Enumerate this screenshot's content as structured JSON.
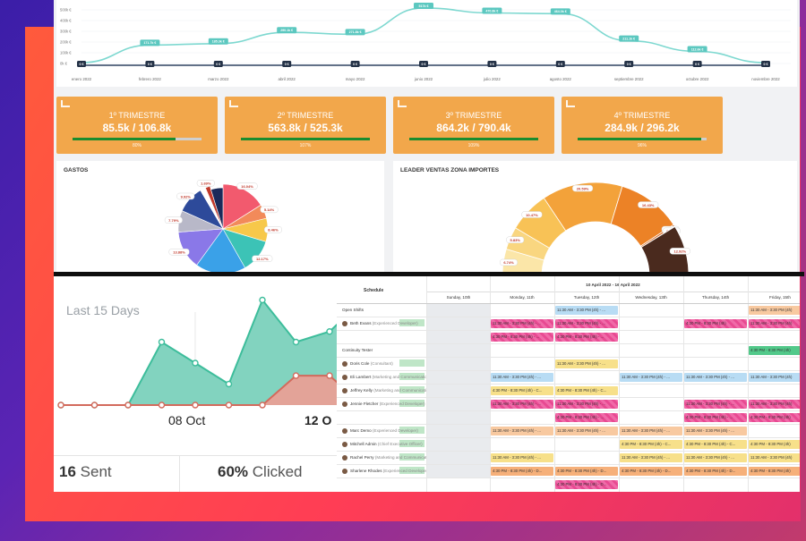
{
  "colors": {
    "orange_card": "#f2a74b",
    "progress_fill": "#1b8c2e",
    "teal_area": "#82d3bf",
    "red_area": "#e3a398"
  },
  "line_chart": {
    "y_ticks": [
      "500k €",
      "400k €",
      "300k €",
      "200k €",
      "100k €",
      "0k €"
    ],
    "months": [
      "enero 2022",
      "febrero 2022",
      "marzo 2022",
      "abril 2022",
      "mayo 2022",
      "junio 2022",
      "julio 2022",
      "agosto 2022",
      "septiembre 2022",
      "octubre 2022",
      "noviembre 2022"
    ],
    "values": [
      null,
      171.7,
      185.3,
      290.1,
      271.8,
      517.0,
      470.8,
      464.0,
      211.1,
      112.6,
      null
    ],
    "value_labels": [
      "",
      "171.7k €",
      "185.3k €",
      "290.1k €",
      "271.8k €",
      "517k €",
      "470.8k €",
      "464.0k €",
      "211.1k €",
      "112.6k €",
      ""
    ],
    "zero_label": "0 €"
  },
  "trimestres": [
    {
      "title": "1º TRIMESTRE",
      "value": "85.5k / 106.8k",
      "pct_label": "80%",
      "progress": 0.8
    },
    {
      "title": "2º TRIMESTRE",
      "value": "563.8k / 525.3k",
      "pct_label": "107%",
      "progress": 1.0
    },
    {
      "title": "3º TRIMESTRE",
      "value": "864.2k / 790.4k",
      "pct_label": "109%",
      "progress": 1.0
    },
    {
      "title": "4º TRIMESTRE",
      "value": "284.9k / 296.2k",
      "pct_label": "96%",
      "progress": 0.96
    }
  ],
  "gastos": {
    "title": "GASTOS",
    "slices": [
      {
        "label": "16.04%",
        "value": 16.04,
        "color": "#f25a6e"
      },
      {
        "label": "5.14%",
        "value": 5.14,
        "color": "#f28a5a"
      },
      {
        "label": "8.46%",
        "value": 8.46,
        "color": "#f7c84a"
      },
      {
        "label": "12.17%",
        "value": 12.17,
        "color": "#3cc3b6"
      },
      {
        "label": "18.18%",
        "value": 18.18,
        "color": "#3aa1e8"
      },
      {
        "label": "13.88%",
        "value": 13.88,
        "color": "#8a78e8"
      },
      {
        "label": "7.79%",
        "value": 7.79,
        "color": "#b8b8c8"
      },
      {
        "label": "9.92%",
        "value": 9.92,
        "color": "#2d4a9a"
      },
      {
        "label": "",
        "value": 2.0,
        "color": "#ffffff"
      },
      {
        "label": "1.69%",
        "value": 1.69,
        "color": "#c0392b"
      },
      {
        "label": "",
        "value": 4.73,
        "color": "#1a2a5a"
      }
    ]
  },
  "leader": {
    "title": "LEADER VENTAS ZONA IMPORTES",
    "slices": [
      {
        "label": "6.74%",
        "value": 6.74,
        "color": "#fbe6a8"
      },
      {
        "label": "5.83%",
        "value": 5.83,
        "color": "#f9d680"
      },
      {
        "label": "10.47%",
        "value": 10.47,
        "color": "#f8c256"
      },
      {
        "label": "20.59%",
        "value": 20.59,
        "color": "#f3a23a"
      },
      {
        "label": "16.43%",
        "value": 16.43,
        "color": "#ec8226"
      },
      {
        "label": "0.52%",
        "value": 0.52,
        "color": "#d3621a"
      },
      {
        "label": "0.09%",
        "value": 0.09,
        "color": "#b04c16"
      },
      {
        "label": "12.92%",
        "value": 12.92,
        "color": "#4a2a1e"
      }
    ]
  },
  "email": {
    "title": "Last 15 Days",
    "date_labels": [
      "08 Oct",
      "12 O"
    ],
    "opened": [
      0,
      0,
      0,
      3,
      2,
      1,
      5,
      3,
      3.5,
      5,
      3,
      1,
      0,
      0
    ],
    "clicked": [
      0,
      0,
      0,
      0,
      0,
      0,
      0,
      1.4,
      1.4,
      0,
      0,
      0,
      0,
      0
    ],
    "sent_count": "16",
    "sent_label": "Sent",
    "clicked_pct": "60%",
    "clicked_label": "Clicked"
  },
  "schedule": {
    "title": "Schedule",
    "range": "10 April 2022 - 16 April 2022",
    "days": [
      "Sunday, 10th",
      "Monday, 11th",
      "Tuesday, 12th",
      "Wednesday, 13th",
      "Thursday, 14th",
      "Friday, 15th"
    ],
    "rows": [
      {
        "name": "Open Shifts",
        "role": "",
        "avatar": false,
        "group": true
      },
      {
        "name": "Beth Evans",
        "role": "(Experienced Developer)",
        "avatar": true
      },
      {
        "name": "",
        "role": "",
        "avatar": false
      },
      {
        "name": "Continuity Tester",
        "role": "",
        "avatar": false,
        "group": true
      },
      {
        "name": "Doris Cole",
        "role": "(Consultant)",
        "avatar": true
      },
      {
        "name": "Eli Lambert",
        "role": "(Marketing and Communications)",
        "avatar": true
      },
      {
        "name": "Jeffrey Kelly",
        "role": "(Marketing and Communications)",
        "avatar": true
      },
      {
        "name": "Jennie Fletcher",
        "role": "(Experienced Developer)",
        "avatar": true
      },
      {
        "name": "",
        "role": "",
        "avatar": false
      },
      {
        "name": "Marc Demo",
        "role": "(Experienced Developer)",
        "avatar": true
      },
      {
        "name": "Mitchell Admin",
        "role": "(Chief Executive Officer)",
        "avatar": true
      },
      {
        "name": "Rachel Perry",
        "role": "(Marketing and Communications)",
        "avatar": true
      },
      {
        "name": "Sharlene Rhodes",
        "role": "(Experienced Developer)",
        "avatar": true
      }
    ],
    "shift_texts": {
      "a": "11:30 AM - 3:30 PM (4h) - ...",
      "b": "4:30 PM - 8:30 PM (4h) - ...",
      "c": "4:30 PM - 8:30 PM (4h) - C...",
      "d": "4:30 PM - 8:30 PM (4h) - D...",
      "e": "11:30 AM - 3:30 PM (4h)",
      "f": "4:30 PM - 8:30 PM (4h)"
    }
  }
}
